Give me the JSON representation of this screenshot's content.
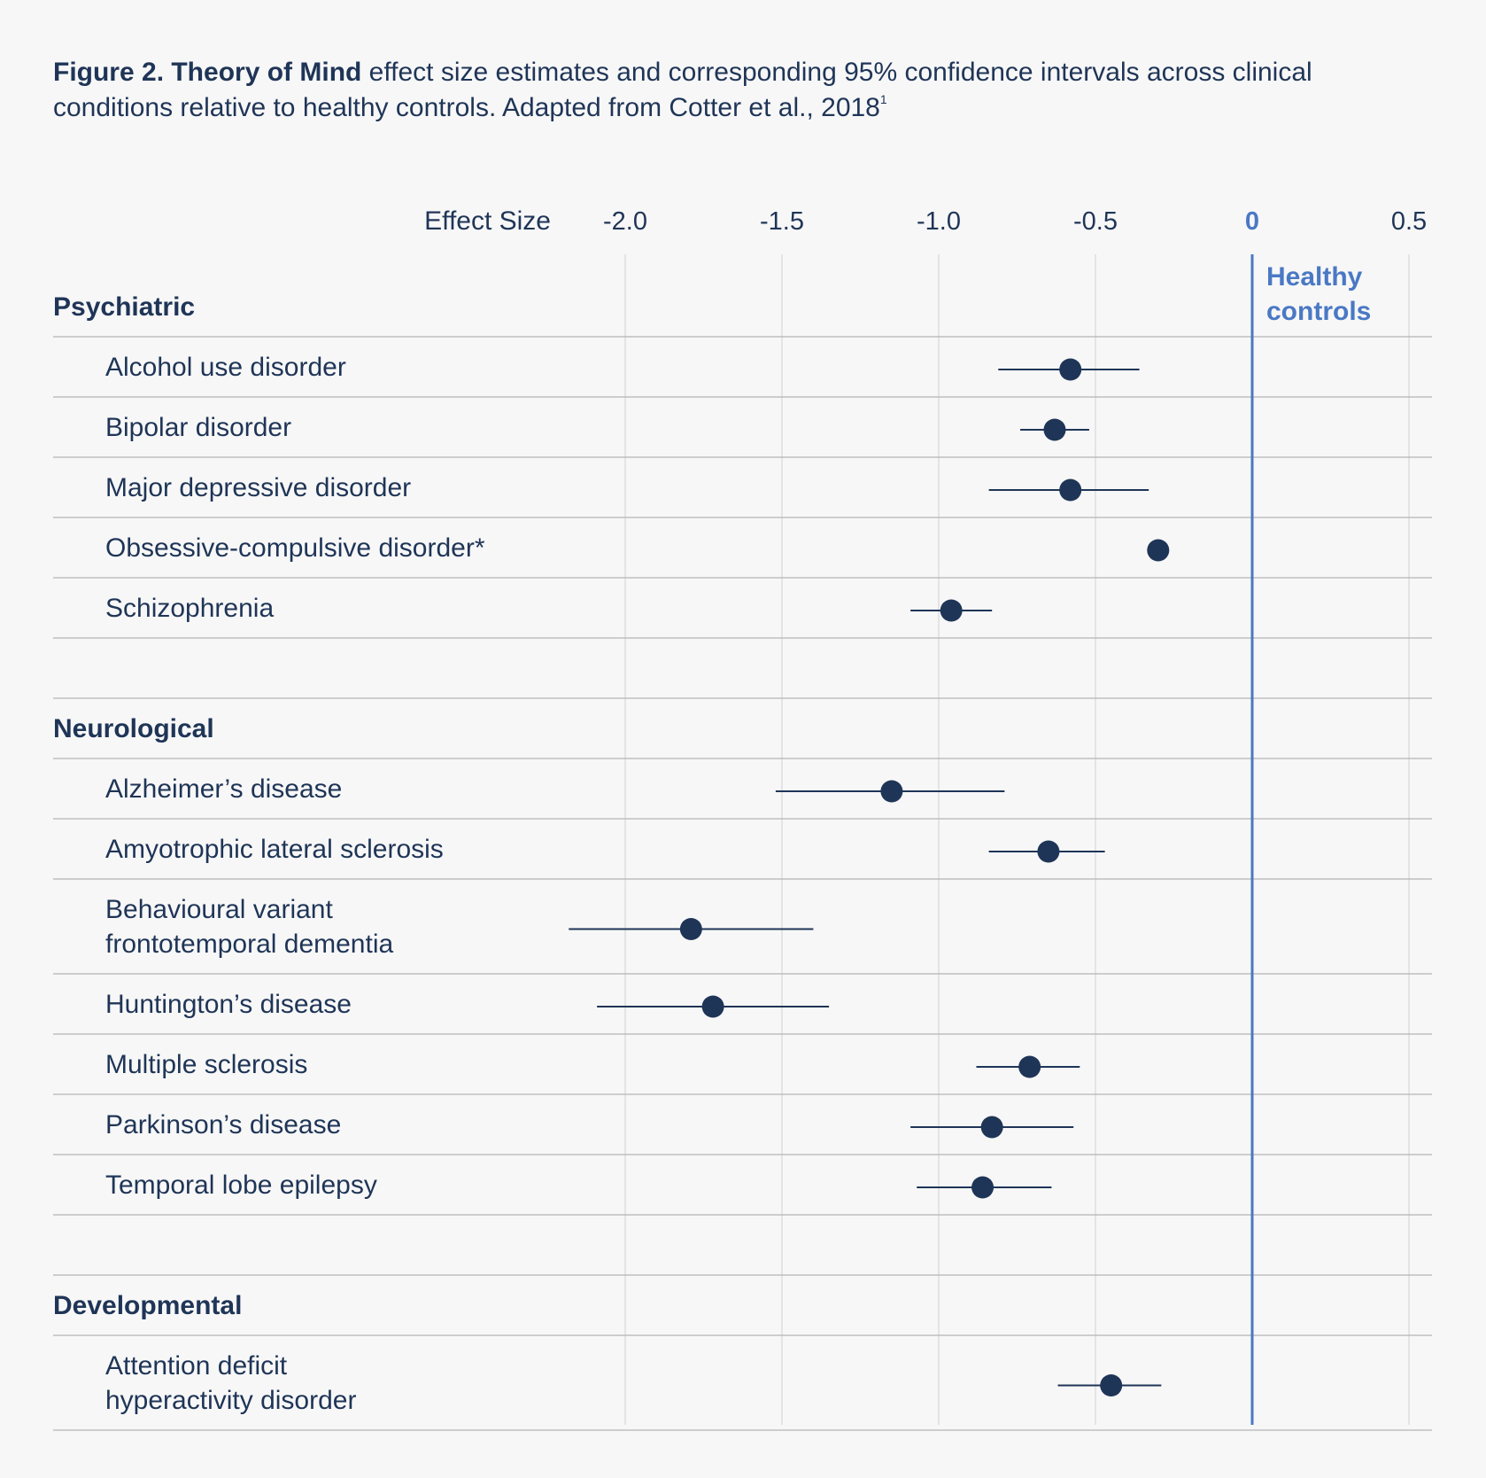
{
  "caption": {
    "bold": "Figure 2. Theory of Mind",
    "text": " effect size estimates and corresponding 95% confidence intervals across clinical conditions relative to healthy controls. Adapted from Cotter et al., 2018",
    "sup": "1"
  },
  "reference_label": "Healthy controls",
  "colors": {
    "point": "#1f3557",
    "text": "#1f3557",
    "reference": "#4a78c4",
    "grid": "#d8d8d8",
    "background": "#f7f7f7"
  },
  "chart_data": {
    "type": "scatter",
    "subtype": "forest-plot",
    "xlabel": "Effect Size",
    "xlim": [
      -2.0,
      0.5
    ],
    "x_ticks": [
      -2.0,
      -1.5,
      -1.0,
      -0.5,
      0,
      0.5
    ],
    "x_tick_labels": [
      "-2.0",
      "-1.5",
      "-1.0",
      "-0.5",
      "0",
      "0.5"
    ],
    "reference_line": 0,
    "grid": true,
    "groups": [
      {
        "name": "Psychiatric",
        "items": [
          {
            "label": [
              "Alcohol use disorder"
            ],
            "estimate": -0.58,
            "ci": [
              -0.81,
              -0.36
            ]
          },
          {
            "label": [
              "Bipolar disorder"
            ],
            "estimate": -0.63,
            "ci": [
              -0.74,
              -0.52
            ]
          },
          {
            "label": [
              "Major depressive disorder"
            ],
            "estimate": -0.58,
            "ci": [
              -0.84,
              -0.33
            ]
          },
          {
            "label": [
              "Obsessive-compulsive disorder*"
            ],
            "estimate": -0.3,
            "ci": null
          },
          {
            "label": [
              "Schizophrenia"
            ],
            "estimate": -0.96,
            "ci": [
              -1.09,
              -0.83
            ]
          }
        ]
      },
      {
        "name": "Neurological",
        "items": [
          {
            "label": [
              "Alzheimer’s disease"
            ],
            "estimate": -1.15,
            "ci": [
              -1.52,
              -0.79
            ]
          },
          {
            "label": [
              "Amyotrophic lateral sclerosis"
            ],
            "estimate": -0.65,
            "ci": [
              -0.84,
              -0.47
            ]
          },
          {
            "label": [
              "Behavioural variant",
              "frontotemporal dementia"
            ],
            "estimate": -1.79,
            "ci": [
              -2.18,
              -1.4
            ]
          },
          {
            "label": [
              "Huntington’s disease"
            ],
            "estimate": -1.72,
            "ci": [
              -2.09,
              -1.35
            ]
          },
          {
            "label": [
              "Multiple sclerosis"
            ],
            "estimate": -0.71,
            "ci": [
              -0.88,
              -0.55
            ]
          },
          {
            "label": [
              "Parkinson’s disease"
            ],
            "estimate": -0.83,
            "ci": [
              -1.09,
              -0.57
            ]
          },
          {
            "label": [
              "Temporal lobe epilepsy"
            ],
            "estimate": -0.86,
            "ci": [
              -1.07,
              -0.64
            ]
          }
        ]
      },
      {
        "name": "Developmental",
        "items": [
          {
            "label": [
              "Attention deficit",
              "hyperactivity disorder"
            ],
            "estimate": -0.45,
            "ci": [
              -0.62,
              -0.29
            ]
          }
        ]
      }
    ]
  }
}
